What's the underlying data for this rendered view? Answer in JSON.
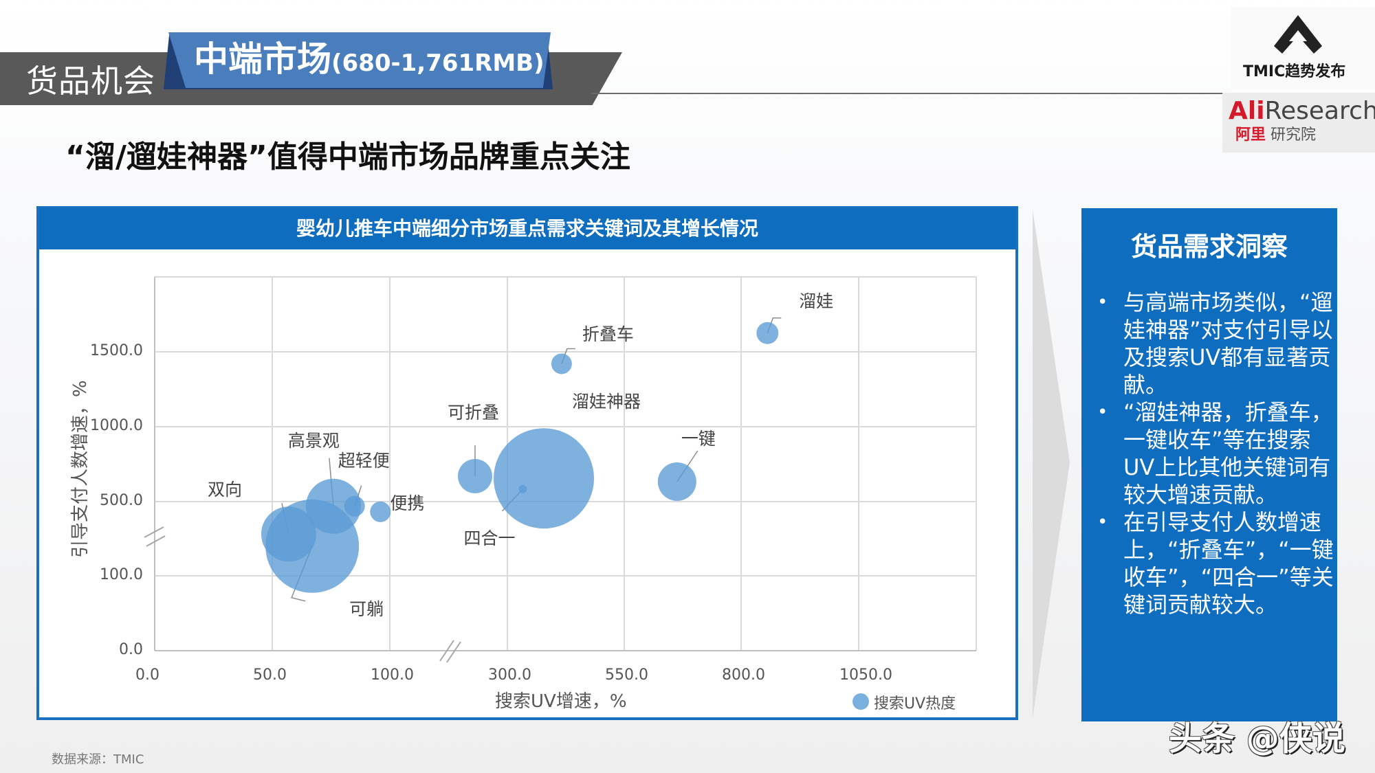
{
  "header": {
    "section_label": "货品机会",
    "tab_title_main": "中端市场",
    "tab_title_range": "(680-1,761RMB)",
    "headline": "“溜/遛娃神器”值得中端市场品牌重点关注"
  },
  "logos": {
    "tmic_icon": "tmic-arrow-logo-icon",
    "tmic_text": "TMIC趋势发布",
    "ali_prefix": "Ali",
    "ali_suffix": "Research",
    "ali_cn_prefix": "阿里",
    "ali_cn_suffix": "研究院"
  },
  "chart_panel": {
    "title": "婴幼儿推车中端细分市场重点需求关键词及其增长情况"
  },
  "colors": {
    "brand_blue": "#0f6dbf",
    "tab_blue": "#4a7dbc",
    "header_gray": "#595959",
    "bubble_fill": "#5b9bd5",
    "ali_red": "#d3192a"
  },
  "chart_data": {
    "type": "scatter",
    "subtype": "bubble",
    "title": "婴幼儿推车中端细分市场重点需求关键词及其增长情况",
    "xlabel": "搜索UV增速，%",
    "ylabel": "引导支付人数增速，%",
    "x_ticks": [
      "0.0",
      "50.0",
      "100.0",
      "300.0",
      "550.0",
      "800.0",
      "1050.0"
    ],
    "y_ticks": [
      "0.0",
      "100.0",
      "500.0",
      "1000.0",
      "1500.0"
    ],
    "x_axis_break": "between 100.0 and 300.0",
    "y_axis_break": "between 100.0 and 500.0",
    "grid": true,
    "legend": [
      "搜索UV热度"
    ],
    "legend_position": "bottom-right",
    "series": [
      {
        "name": "搜索UV热度",
        "points": [
          {
            "label": "双向",
            "x": 57,
            "y": 325,
            "size": 40
          },
          {
            "label": "可躺",
            "x": 67,
            "y": 260,
            "size": 68
          },
          {
            "label": "高景观",
            "x": 76,
            "y": 475,
            "size": 40
          },
          {
            "label": "超轻便",
            "x": 85,
            "y": 475,
            "size": 15
          },
          {
            "label": "便携",
            "x": 96,
            "y": 445,
            "size": 15
          },
          {
            "label": "可折叠",
            "x": 245,
            "y": 670,
            "size": 25
          },
          {
            "label": "四合一",
            "x": 333,
            "y": 583,
            "size": 6
          },
          {
            "label": "溜娃神器",
            "x": 378,
            "y": 655,
            "size": 73
          },
          {
            "label": "折叠车",
            "x": 416,
            "y": 1420,
            "size": 15
          },
          {
            "label": "一键",
            "x": 663,
            "y": 633,
            "size": 28
          },
          {
            "label": "溜娃",
            "x": 856,
            "y": 1600,
            "size": 16
          }
        ]
      }
    ]
  },
  "insight_panel": {
    "title": "货品需求洞察",
    "bullets": [
      "与高端市场类似，“遛娃神器”对支付引导以及搜索UV都有显著贡献。",
      "“溜娃神器，折叠车，一键收车”等在搜索UV上比其他关键词有较大增速贡献。",
      "在引导支付人数增速上，“折叠车”，“一键收车”，“四合一”等关键词贡献较大。"
    ],
    "bullet_glyph": "•"
  },
  "footer": {
    "source": "数据来源：TMIC",
    "watermark": "头条 @侠说"
  }
}
